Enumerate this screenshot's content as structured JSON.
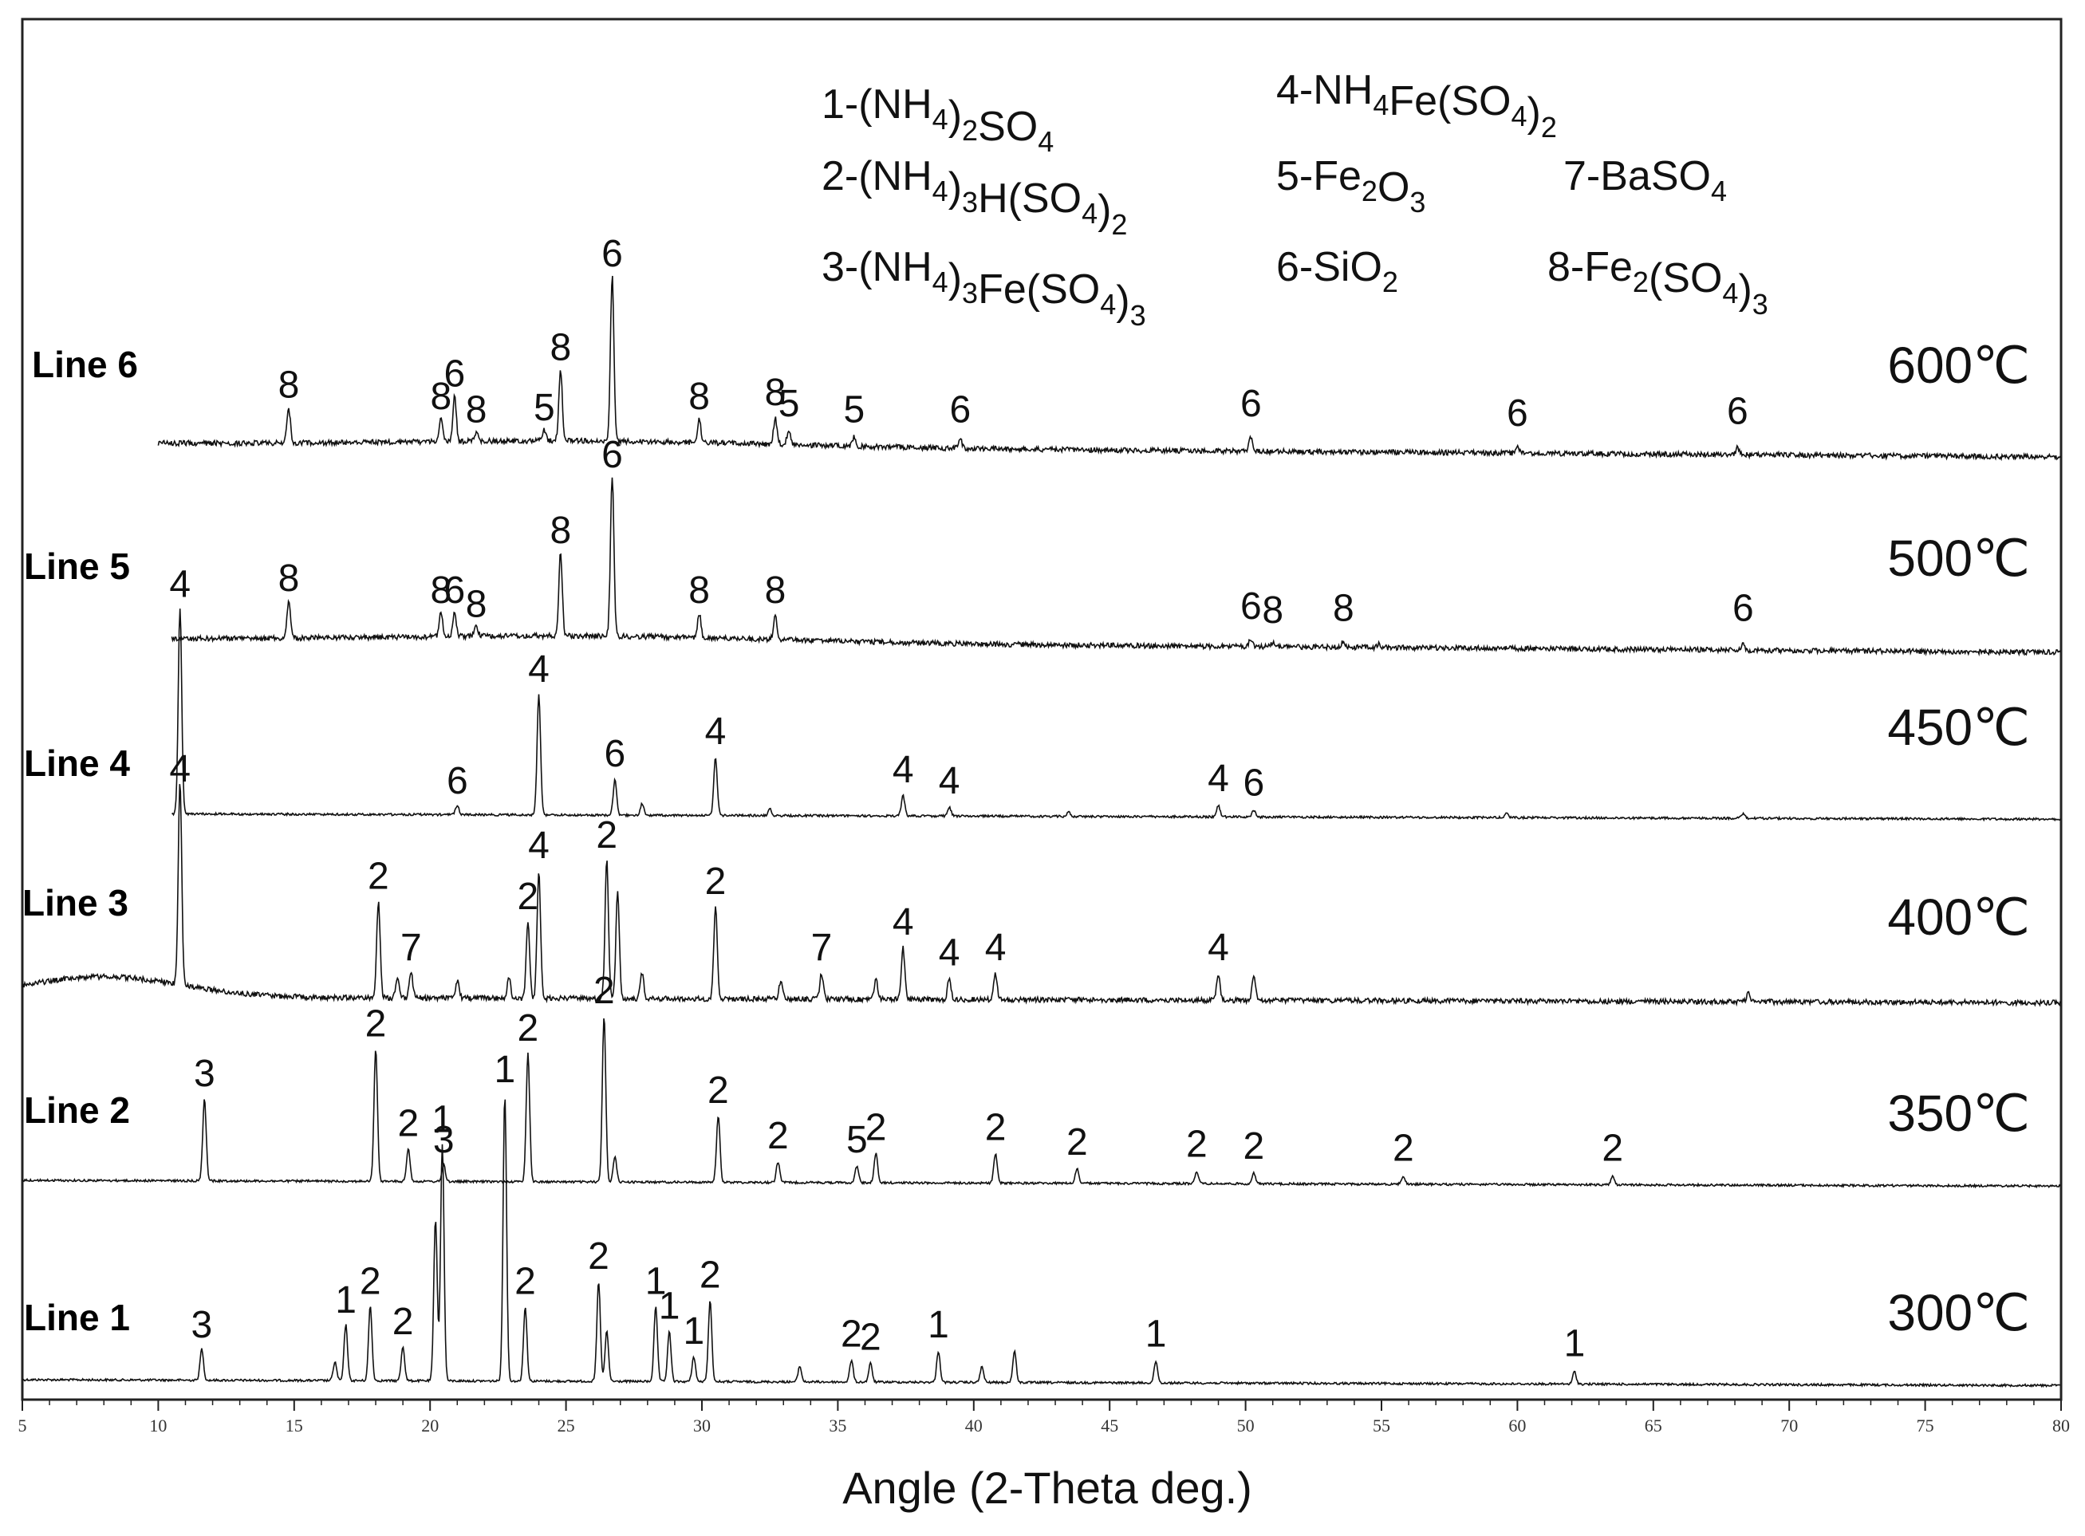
{
  "chart_data": {
    "type": "line",
    "title": "",
    "xlabel": "Angle (2-Theta deg.)",
    "ylabel": "",
    "xlim": [
      5,
      80
    ],
    "x_ticks": [
      "5",
      "10",
      "15",
      "20",
      "25",
      "30",
      "35",
      "40",
      "45",
      "50",
      "55",
      "60",
      "65",
      "70",
      "75",
      "80"
    ],
    "grid": false,
    "legend": [
      {
        "code": "1",
        "sub": [
          [
            "-(NH",
            ""
          ],
          [
            "4",
            "sub"
          ],
          [
            ")",
            ""
          ],
          [
            "2",
            "sub"
          ],
          [
            "SO",
            ""
          ],
          [
            "4",
            "sub"
          ]
        ]
      },
      {
        "code": "2",
        "sub": [
          [
            "-(NH",
            ""
          ],
          [
            "4",
            "sub"
          ],
          [
            ")",
            ""
          ],
          [
            "3",
            "sub"
          ],
          [
            "H(SO",
            ""
          ],
          [
            "4",
            "sub"
          ],
          [
            ")",
            ""
          ],
          [
            "2",
            "sub"
          ]
        ]
      },
      {
        "code": "3",
        "sub": [
          [
            "-(NH",
            ""
          ],
          [
            "4",
            "sub"
          ],
          [
            ")",
            ""
          ],
          [
            "3",
            "sub"
          ],
          [
            "Fe(SO",
            ""
          ],
          [
            "4",
            "sub"
          ],
          [
            ")",
            ""
          ],
          [
            "3",
            "sub"
          ]
        ]
      },
      {
        "code": "4",
        "sub": [
          [
            "-NH",
            ""
          ],
          [
            "4",
            "sub"
          ],
          [
            "Fe(SO",
            ""
          ],
          [
            "4",
            "sub"
          ],
          [
            ")",
            ""
          ],
          [
            "2",
            "sub"
          ]
        ]
      },
      {
        "code": "5",
        "sub": [
          [
            "-Fe",
            ""
          ],
          [
            "2",
            "sub"
          ],
          [
            "O",
            ""
          ],
          [
            "3",
            "sub"
          ]
        ]
      },
      {
        "code": "6",
        "sub": [
          [
            "-SiO",
            ""
          ],
          [
            "2",
            "sub"
          ]
        ]
      },
      {
        "code": "7",
        "sub": [
          [
            "-BaSO",
            ""
          ],
          [
            "4",
            "sub"
          ]
        ]
      },
      {
        "code": "8",
        "sub": [
          [
            "-Fe",
            ""
          ],
          [
            "2",
            "sub"
          ],
          [
            "(SO",
            ""
          ],
          [
            "4",
            "sub"
          ],
          [
            ")",
            ""
          ],
          [
            "3",
            "sub"
          ]
        ]
      }
    ],
    "series": [
      {
        "name": "Line 1",
        "temperature": "300℃",
        "xstart": 5,
        "xend": 80,
        "peaks": [
          {
            "x": 11.6,
            "h": 0.5,
            "label": "3"
          },
          {
            "x": 16.5,
            "h": 0.3,
            "label": ""
          },
          {
            "x": 16.9,
            "h": 0.9,
            "label": "1"
          },
          {
            "x": 17.8,
            "h": 1.2,
            "label": "2"
          },
          {
            "x": 19.0,
            "h": 0.55,
            "label": "2"
          },
          {
            "x": 20.2,
            "h": 2.6,
            "label": ""
          },
          {
            "x": 20.45,
            "h": 3.8,
            "label": "1"
          },
          {
            "x": 22.75,
            "h": 4.6,
            "label": "1"
          },
          {
            "x": 23.5,
            "h": 1.2,
            "label": "2"
          },
          {
            "x": 26.2,
            "h": 1.6,
            "label": "2"
          },
          {
            "x": 26.5,
            "h": 0.8,
            "label": ""
          },
          {
            "x": 28.3,
            "h": 1.2,
            "label": "1"
          },
          {
            "x": 28.8,
            "h": 0.8,
            "label": "1"
          },
          {
            "x": 29.7,
            "h": 0.4,
            "label": "1"
          },
          {
            "x": 30.3,
            "h": 1.3,
            "label": "2"
          },
          {
            "x": 33.6,
            "h": 0.25,
            "label": ""
          },
          {
            "x": 35.5,
            "h": 0.35,
            "label": "2"
          },
          {
            "x": 36.2,
            "h": 0.3,
            "label": "2"
          },
          {
            "x": 38.7,
            "h": 0.5,
            "label": "1"
          },
          {
            "x": 40.3,
            "h": 0.25,
            "label": ""
          },
          {
            "x": 41.5,
            "h": 0.5,
            "label": ""
          },
          {
            "x": 46.7,
            "h": 0.35,
            "label": "1"
          },
          {
            "x": 62.1,
            "h": 0.2,
            "label": "1"
          }
        ]
      },
      {
        "name": "Line 2",
        "temperature": "350℃",
        "xstart": 5,
        "xend": 80,
        "peaks": [
          {
            "x": 11.7,
            "h": 2.0,
            "label": "3"
          },
          {
            "x": 18.0,
            "h": 3.2,
            "label": "2"
          },
          {
            "x": 19.2,
            "h": 0.8,
            "label": "2"
          },
          {
            "x": 20.5,
            "h": 0.4,
            "label": "3"
          },
          {
            "x": 23.6,
            "h": 3.1,
            "label": "2"
          },
          {
            "x": 26.4,
            "h": 4.0,
            "label": "2"
          },
          {
            "x": 26.8,
            "h": 0.6,
            "label": ""
          },
          {
            "x": 30.6,
            "h": 1.6,
            "label": "2"
          },
          {
            "x": 32.8,
            "h": 0.5,
            "label": "2"
          },
          {
            "x": 35.7,
            "h": 0.4,
            "label": "5"
          },
          {
            "x": 36.4,
            "h": 0.7,
            "label": "2"
          },
          {
            "x": 40.8,
            "h": 0.7,
            "label": "2"
          },
          {
            "x": 43.8,
            "h": 0.35,
            "label": "2"
          },
          {
            "x": 48.2,
            "h": 0.3,
            "label": "2"
          },
          {
            "x": 50.3,
            "h": 0.25,
            "label": "2"
          },
          {
            "x": 55.8,
            "h": 0.2,
            "label": "2"
          },
          {
            "x": 63.5,
            "h": 0.2,
            "label": "2"
          }
        ]
      },
      {
        "name": "Line 3",
        "temperature": "400℃",
        "xstart": 5,
        "xend": 80,
        "peaks": [
          {
            "x": 10.8,
            "h": 4.0,
            "label": "4"
          },
          {
            "x": 18.1,
            "h": 1.9,
            "label": "2"
          },
          {
            "x": 19.3,
            "h": 0.5,
            "label": "7"
          },
          {
            "x": 18.8,
            "h": 0.4,
            "label": ""
          },
          {
            "x": 21.0,
            "h": 0.35,
            "label": ""
          },
          {
            "x": 22.9,
            "h": 0.4,
            "label": ""
          },
          {
            "x": 23.6,
            "h": 1.5,
            "label": "2"
          },
          {
            "x": 24.0,
            "h": 2.5,
            "label": "4"
          },
          {
            "x": 26.5,
            "h": 2.7,
            "label": "2"
          },
          {
            "x": 26.9,
            "h": 2.1,
            "label": ""
          },
          {
            "x": 27.8,
            "h": 0.5,
            "label": ""
          },
          {
            "x": 30.5,
            "h": 1.8,
            "label": "2"
          },
          {
            "x": 32.9,
            "h": 0.35,
            "label": ""
          },
          {
            "x": 34.4,
            "h": 0.5,
            "label": "7"
          },
          {
            "x": 36.4,
            "h": 0.4,
            "label": ""
          },
          {
            "x": 37.4,
            "h": 1.0,
            "label": "4"
          },
          {
            "x": 39.1,
            "h": 0.4,
            "label": "4"
          },
          {
            "x": 40.8,
            "h": 0.5,
            "label": "4"
          },
          {
            "x": 49.0,
            "h": 0.5,
            "label": "4"
          },
          {
            "x": 50.3,
            "h": 0.45,
            "label": ""
          },
          {
            "x": 68.5,
            "h": 0.2,
            "label": ""
          }
        ]
      },
      {
        "name": "Line 4",
        "temperature": "450℃",
        "xstart": 10.5,
        "xend": 80,
        "peaks": [
          {
            "x": 10.8,
            "h": 4.6,
            "label": "4"
          },
          {
            "x": 21.0,
            "h": 0.2,
            "label": "6"
          },
          {
            "x": 24.0,
            "h": 2.7,
            "label": "4"
          },
          {
            "x": 26.8,
            "h": 0.8,
            "label": "6"
          },
          {
            "x": 27.8,
            "h": 0.25,
            "label": ""
          },
          {
            "x": 30.5,
            "h": 1.3,
            "label": "4"
          },
          {
            "x": 32.5,
            "h": 0.15,
            "label": ""
          },
          {
            "x": 37.4,
            "h": 0.45,
            "label": "4"
          },
          {
            "x": 39.1,
            "h": 0.2,
            "label": "4"
          },
          {
            "x": 43.5,
            "h": 0.1,
            "label": ""
          },
          {
            "x": 49.0,
            "h": 0.25,
            "label": "4"
          },
          {
            "x": 50.3,
            "h": 0.15,
            "label": "6"
          },
          {
            "x": 59.6,
            "h": 0.1,
            "label": ""
          },
          {
            "x": 68.3,
            "h": 0.1,
            "label": ""
          }
        ]
      },
      {
        "name": "Line 5",
        "temperature": "500℃",
        "xstart": 10.5,
        "xend": 80,
        "peaks": [
          {
            "x": 14.8,
            "h": 0.9,
            "label": "8"
          },
          {
            "x": 20.4,
            "h": 0.6,
            "label": "8"
          },
          {
            "x": 20.9,
            "h": 0.6,
            "label": "6"
          },
          {
            "x": 21.7,
            "h": 0.25,
            "label": "8"
          },
          {
            "x": 24.8,
            "h": 2.1,
            "label": "8"
          },
          {
            "x": 26.7,
            "h": 4.0,
            "label": "6"
          },
          {
            "x": 29.9,
            "h": 0.6,
            "label": "8"
          },
          {
            "x": 32.7,
            "h": 0.6,
            "label": "8"
          },
          {
            "x": 50.2,
            "h": 0.2,
            "label": "6"
          },
          {
            "x": 51.0,
            "h": 0.1,
            "label": "8"
          },
          {
            "x": 53.6,
            "h": 0.15,
            "label": "8"
          },
          {
            "x": 54.9,
            "h": 0.1,
            "label": ""
          },
          {
            "x": 68.3,
            "h": 0.15,
            "label": "6"
          }
        ]
      },
      {
        "name": "Line 6",
        "temperature": "600℃",
        "xstart": 10,
        "xend": 80,
        "peaks": [
          {
            "x": 14.8,
            "h": 0.9,
            "label": "8"
          },
          {
            "x": 20.4,
            "h": 0.6,
            "label": "8"
          },
          {
            "x": 20.9,
            "h": 1.2,
            "label": "6"
          },
          {
            "x": 21.7,
            "h": 0.25,
            "label": "8"
          },
          {
            "x": 24.2,
            "h": 0.3,
            "label": "5"
          },
          {
            "x": 24.8,
            "h": 1.9,
            "label": "8"
          },
          {
            "x": 26.7,
            "h": 4.4,
            "label": "6"
          },
          {
            "x": 29.9,
            "h": 0.6,
            "label": "8"
          },
          {
            "x": 32.7,
            "h": 0.7,
            "label": "8"
          },
          {
            "x": 33.2,
            "h": 0.4,
            "label": "5"
          },
          {
            "x": 35.6,
            "h": 0.25,
            "label": "5"
          },
          {
            "x": 39.5,
            "h": 0.25,
            "label": "6"
          },
          {
            "x": 50.2,
            "h": 0.4,
            "label": "6"
          },
          {
            "x": 60.0,
            "h": 0.15,
            "label": "6"
          },
          {
            "x": 68.1,
            "h": 0.2,
            "label": "6"
          }
        ]
      }
    ]
  }
}
